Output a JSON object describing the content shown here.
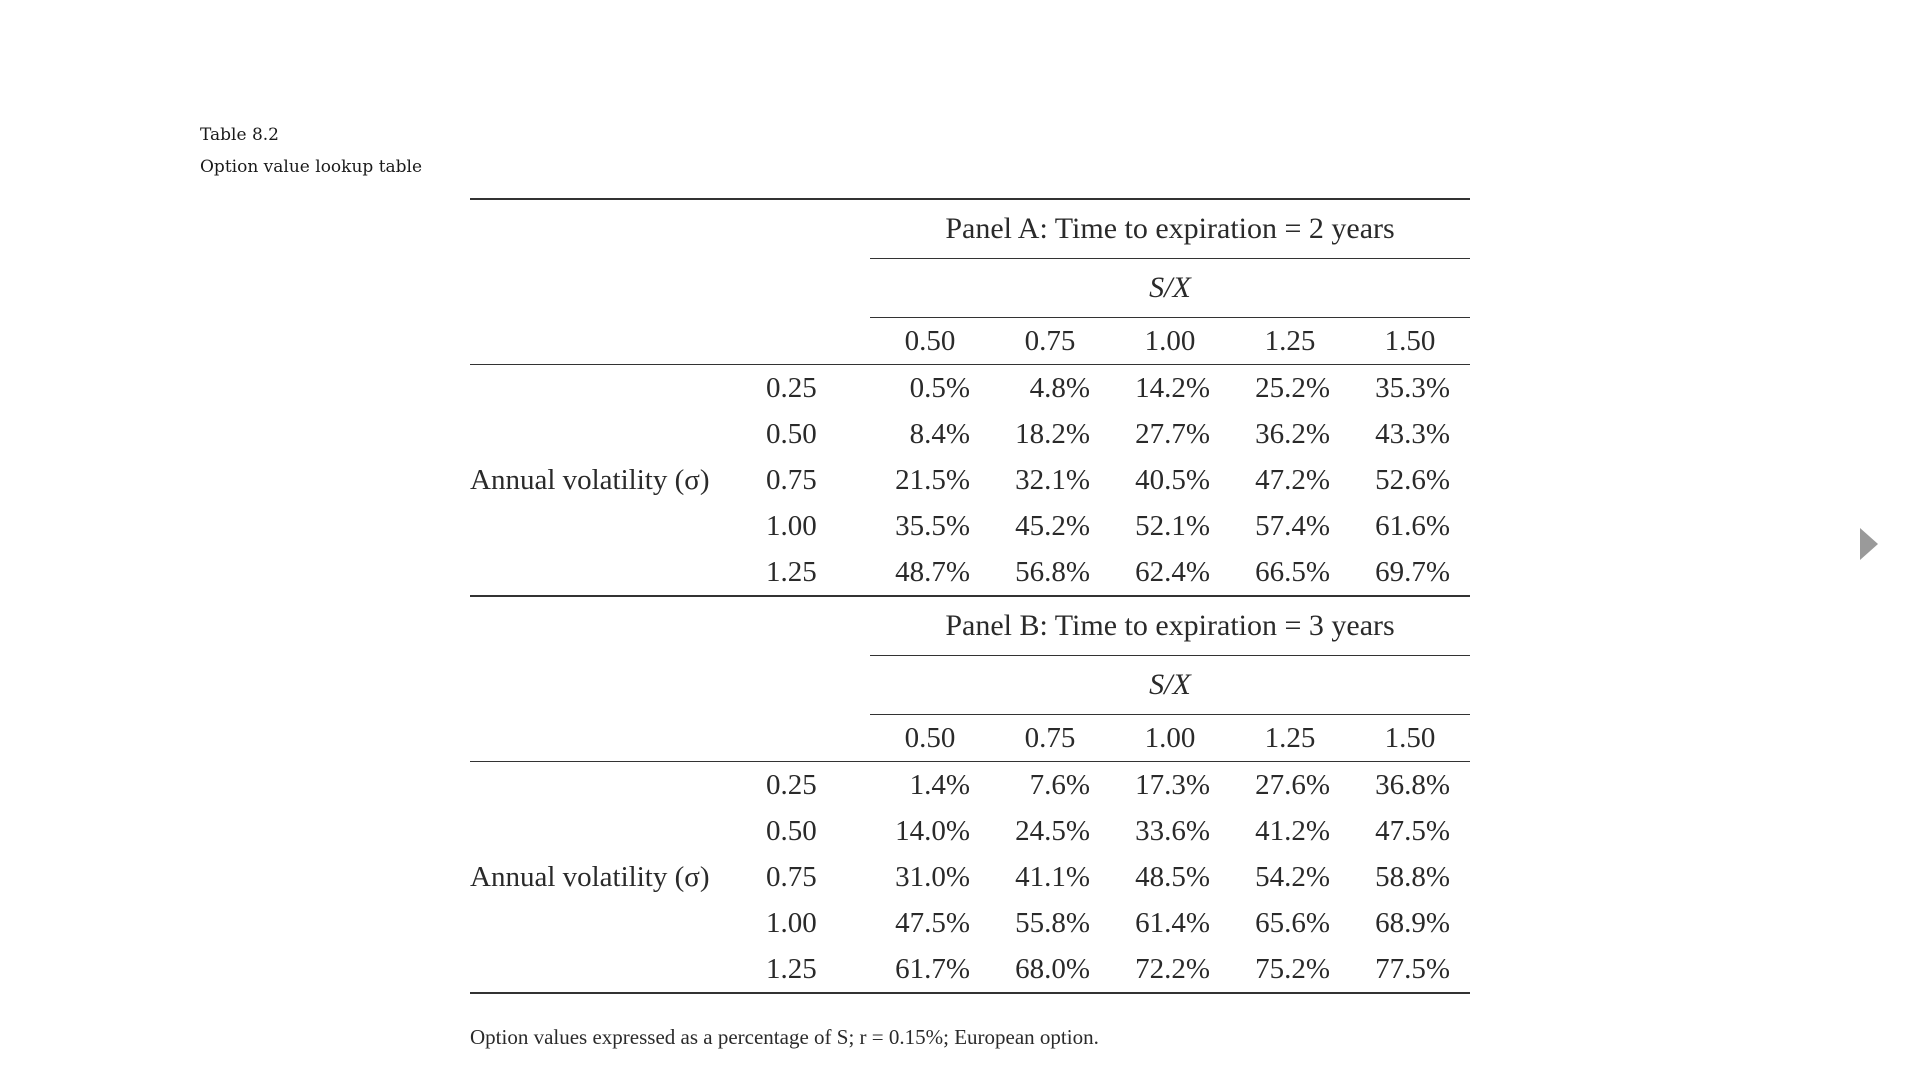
{
  "caption": {
    "table_number": "Table 8.2",
    "table_title": "Option value lookup table"
  },
  "panel_a": {
    "title": "Panel A: Time to expiration = 2 years",
    "sx_label": "S/X",
    "headers": [
      "0.50",
      "0.75",
      "1.00",
      "1.25",
      "1.50"
    ],
    "row_label": "Annual volatility (σ)",
    "rows": [
      {
        "vol": "0.25",
        "values": [
          "0.5%",
          "4.8%",
          "14.2%",
          "25.2%",
          "35.3%"
        ]
      },
      {
        "vol": "0.50",
        "values": [
          "8.4%",
          "18.2%",
          "27.7%",
          "36.2%",
          "43.3%"
        ]
      },
      {
        "vol": "0.75",
        "values": [
          "21.5%",
          "32.1%",
          "40.5%",
          "47.2%",
          "52.6%"
        ]
      },
      {
        "vol": "1.00",
        "values": [
          "35.5%",
          "45.2%",
          "52.1%",
          "57.4%",
          "61.6%"
        ]
      },
      {
        "vol": "1.25",
        "values": [
          "48.7%",
          "56.8%",
          "62.4%",
          "66.5%",
          "69.7%"
        ]
      }
    ]
  },
  "panel_b": {
    "title": "Panel B: Time to expiration = 3 years",
    "sx_label": "S/X",
    "headers": [
      "0.50",
      "0.75",
      "1.00",
      "1.25",
      "1.50"
    ],
    "row_label": "Annual volatility (σ)",
    "rows": [
      {
        "vol": "0.25",
        "values": [
          "1.4%",
          "7.6%",
          "17.3%",
          "27.6%",
          "36.8%"
        ]
      },
      {
        "vol": "0.50",
        "values": [
          "14.0%",
          "24.5%",
          "33.6%",
          "41.2%",
          "47.5%"
        ]
      },
      {
        "vol": "0.75",
        "values": [
          "31.0%",
          "41.1%",
          "48.5%",
          "54.2%",
          "58.8%"
        ]
      },
      {
        "vol": "1.00",
        "values": [
          "47.5%",
          "55.8%",
          "61.4%",
          "65.6%",
          "68.9%"
        ]
      },
      {
        "vol": "1.25",
        "values": [
          "61.7%",
          "68.0%",
          "72.2%",
          "75.2%",
          "77.5%"
        ]
      }
    ]
  },
  "footnote": "Option values expressed as a percentage of S; r = 0.15%; European option.",
  "navigation": {
    "next_icon": "triangle-right-icon",
    "icon_color": "#9a9a9a"
  }
}
